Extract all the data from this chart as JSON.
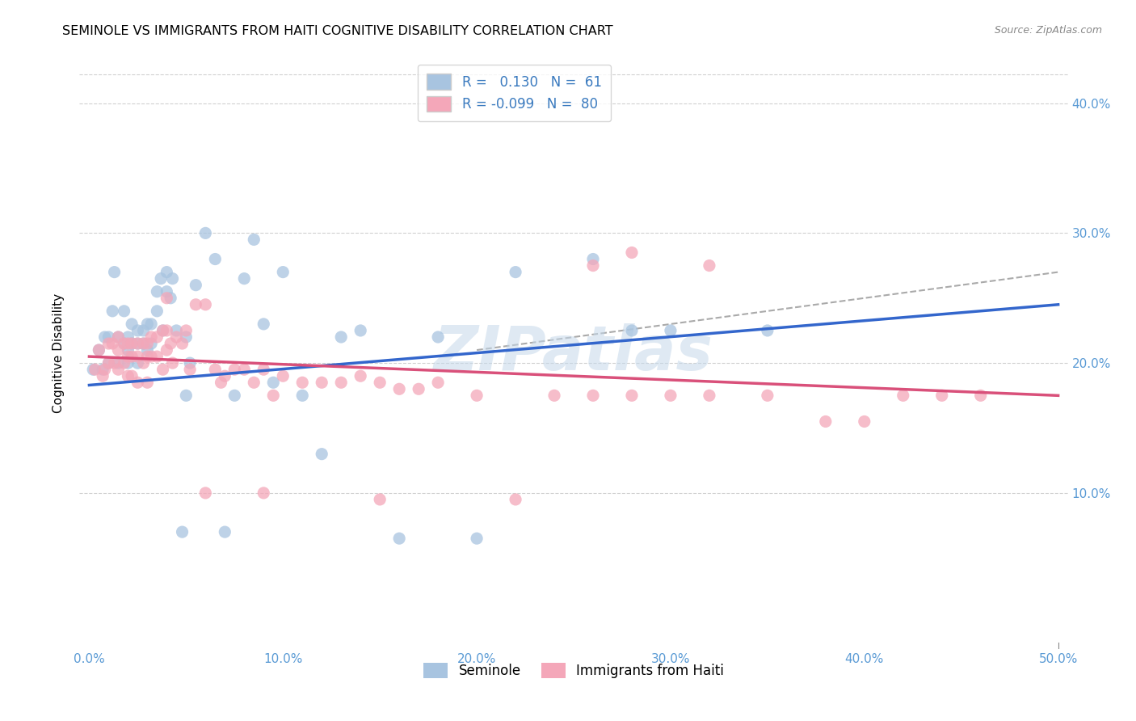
{
  "title": "SEMINOLE VS IMMIGRANTS FROM HAITI COGNITIVE DISABILITY CORRELATION CHART",
  "source": "Source: ZipAtlas.com",
  "ylabel": "Cognitive Disability",
  "xlim": [
    -0.005,
    0.505
  ],
  "ylim": [
    -0.02,
    0.435
  ],
  "seminole_color": "#a8c4e0",
  "haiti_color": "#f4a7b9",
  "seminole_line_color": "#3366cc",
  "haiti_line_color": "#d9507a",
  "dashed_line_color": "#aaaaaa",
  "background_color": "#ffffff",
  "watermark": "ZIPatlas",
  "xtick_positions": [
    0.0,
    0.1,
    0.2,
    0.3,
    0.4,
    0.5
  ],
  "xtick_labels": [
    "0.0%",
    "10.0%",
    "20.0%",
    "30.0%",
    "40.0%",
    "50.0%"
  ],
  "ytick_positions": [
    0.1,
    0.2,
    0.3,
    0.4
  ],
  "ytick_labels": [
    "10.0%",
    "20.0%",
    "30.0%",
    "40.0%"
  ],
  "tick_color": "#5b9bd5",
  "grid_color": "#d0d0d0",
  "seminole_R": 0.13,
  "seminole_N": 61,
  "haiti_R": -0.099,
  "haiti_N": 80,
  "seminole_x": [
    0.002,
    0.005,
    0.007,
    0.008,
    0.01,
    0.01,
    0.012,
    0.013,
    0.015,
    0.015,
    0.018,
    0.018,
    0.02,
    0.02,
    0.02,
    0.022,
    0.022,
    0.025,
    0.025,
    0.025,
    0.028,
    0.028,
    0.03,
    0.03,
    0.032,
    0.032,
    0.035,
    0.035,
    0.037,
    0.038,
    0.04,
    0.04,
    0.042,
    0.043,
    0.045,
    0.048,
    0.05,
    0.052,
    0.055,
    0.06,
    0.065,
    0.07,
    0.075,
    0.08,
    0.085,
    0.09,
    0.095,
    0.1,
    0.11,
    0.12,
    0.14,
    0.16,
    0.2,
    0.22,
    0.26,
    0.28,
    0.3,
    0.35,
    0.18,
    0.13,
    0.05
  ],
  "seminole_y": [
    0.195,
    0.21,
    0.195,
    0.22,
    0.22,
    0.2,
    0.24,
    0.27,
    0.22,
    0.2,
    0.24,
    0.215,
    0.22,
    0.21,
    0.2,
    0.23,
    0.215,
    0.225,
    0.215,
    0.2,
    0.225,
    0.215,
    0.23,
    0.21,
    0.23,
    0.215,
    0.255,
    0.24,
    0.265,
    0.225,
    0.27,
    0.255,
    0.25,
    0.265,
    0.225,
    0.07,
    0.22,
    0.2,
    0.26,
    0.3,
    0.28,
    0.07,
    0.175,
    0.265,
    0.295,
    0.23,
    0.185,
    0.27,
    0.175,
    0.13,
    0.225,
    0.065,
    0.065,
    0.27,
    0.28,
    0.225,
    0.225,
    0.225,
    0.22,
    0.22,
    0.175
  ],
  "haiti_x": [
    0.003,
    0.005,
    0.007,
    0.008,
    0.01,
    0.01,
    0.012,
    0.013,
    0.015,
    0.015,
    0.015,
    0.018,
    0.018,
    0.02,
    0.02,
    0.02,
    0.022,
    0.022,
    0.022,
    0.025,
    0.025,
    0.025,
    0.028,
    0.028,
    0.03,
    0.03,
    0.03,
    0.032,
    0.032,
    0.035,
    0.035,
    0.038,
    0.038,
    0.04,
    0.04,
    0.042,
    0.043,
    0.045,
    0.048,
    0.05,
    0.052,
    0.055,
    0.06,
    0.065,
    0.068,
    0.07,
    0.075,
    0.08,
    0.085,
    0.09,
    0.095,
    0.1,
    0.11,
    0.12,
    0.13,
    0.14,
    0.15,
    0.16,
    0.17,
    0.18,
    0.2,
    0.22,
    0.24,
    0.26,
    0.28,
    0.3,
    0.32,
    0.35,
    0.38,
    0.4,
    0.42,
    0.44,
    0.46,
    0.28,
    0.32,
    0.26,
    0.15,
    0.09,
    0.06,
    0.04
  ],
  "haiti_y": [
    0.195,
    0.21,
    0.19,
    0.195,
    0.215,
    0.2,
    0.215,
    0.2,
    0.22,
    0.21,
    0.195,
    0.215,
    0.2,
    0.215,
    0.205,
    0.19,
    0.215,
    0.205,
    0.19,
    0.215,
    0.205,
    0.185,
    0.215,
    0.2,
    0.215,
    0.205,
    0.185,
    0.22,
    0.205,
    0.22,
    0.205,
    0.225,
    0.195,
    0.225,
    0.21,
    0.215,
    0.2,
    0.22,
    0.215,
    0.225,
    0.195,
    0.245,
    0.245,
    0.195,
    0.185,
    0.19,
    0.195,
    0.195,
    0.185,
    0.195,
    0.175,
    0.19,
    0.185,
    0.185,
    0.185,
    0.19,
    0.185,
    0.18,
    0.18,
    0.185,
    0.175,
    0.095,
    0.175,
    0.175,
    0.175,
    0.175,
    0.175,
    0.175,
    0.155,
    0.155,
    0.175,
    0.175,
    0.175,
    0.285,
    0.275,
    0.275,
    0.095,
    0.1,
    0.1,
    0.25
  ],
  "sem_line_x0": 0.0,
  "sem_line_x1": 0.5,
  "sem_line_y0": 0.183,
  "sem_line_y1": 0.245,
  "haiti_line_x0": 0.0,
  "haiti_line_x1": 0.5,
  "haiti_line_y0": 0.205,
  "haiti_line_y1": 0.175,
  "dash_line_x0": 0.2,
  "dash_line_x1": 0.5,
  "dash_line_y0": 0.21,
  "dash_line_y1": 0.27
}
